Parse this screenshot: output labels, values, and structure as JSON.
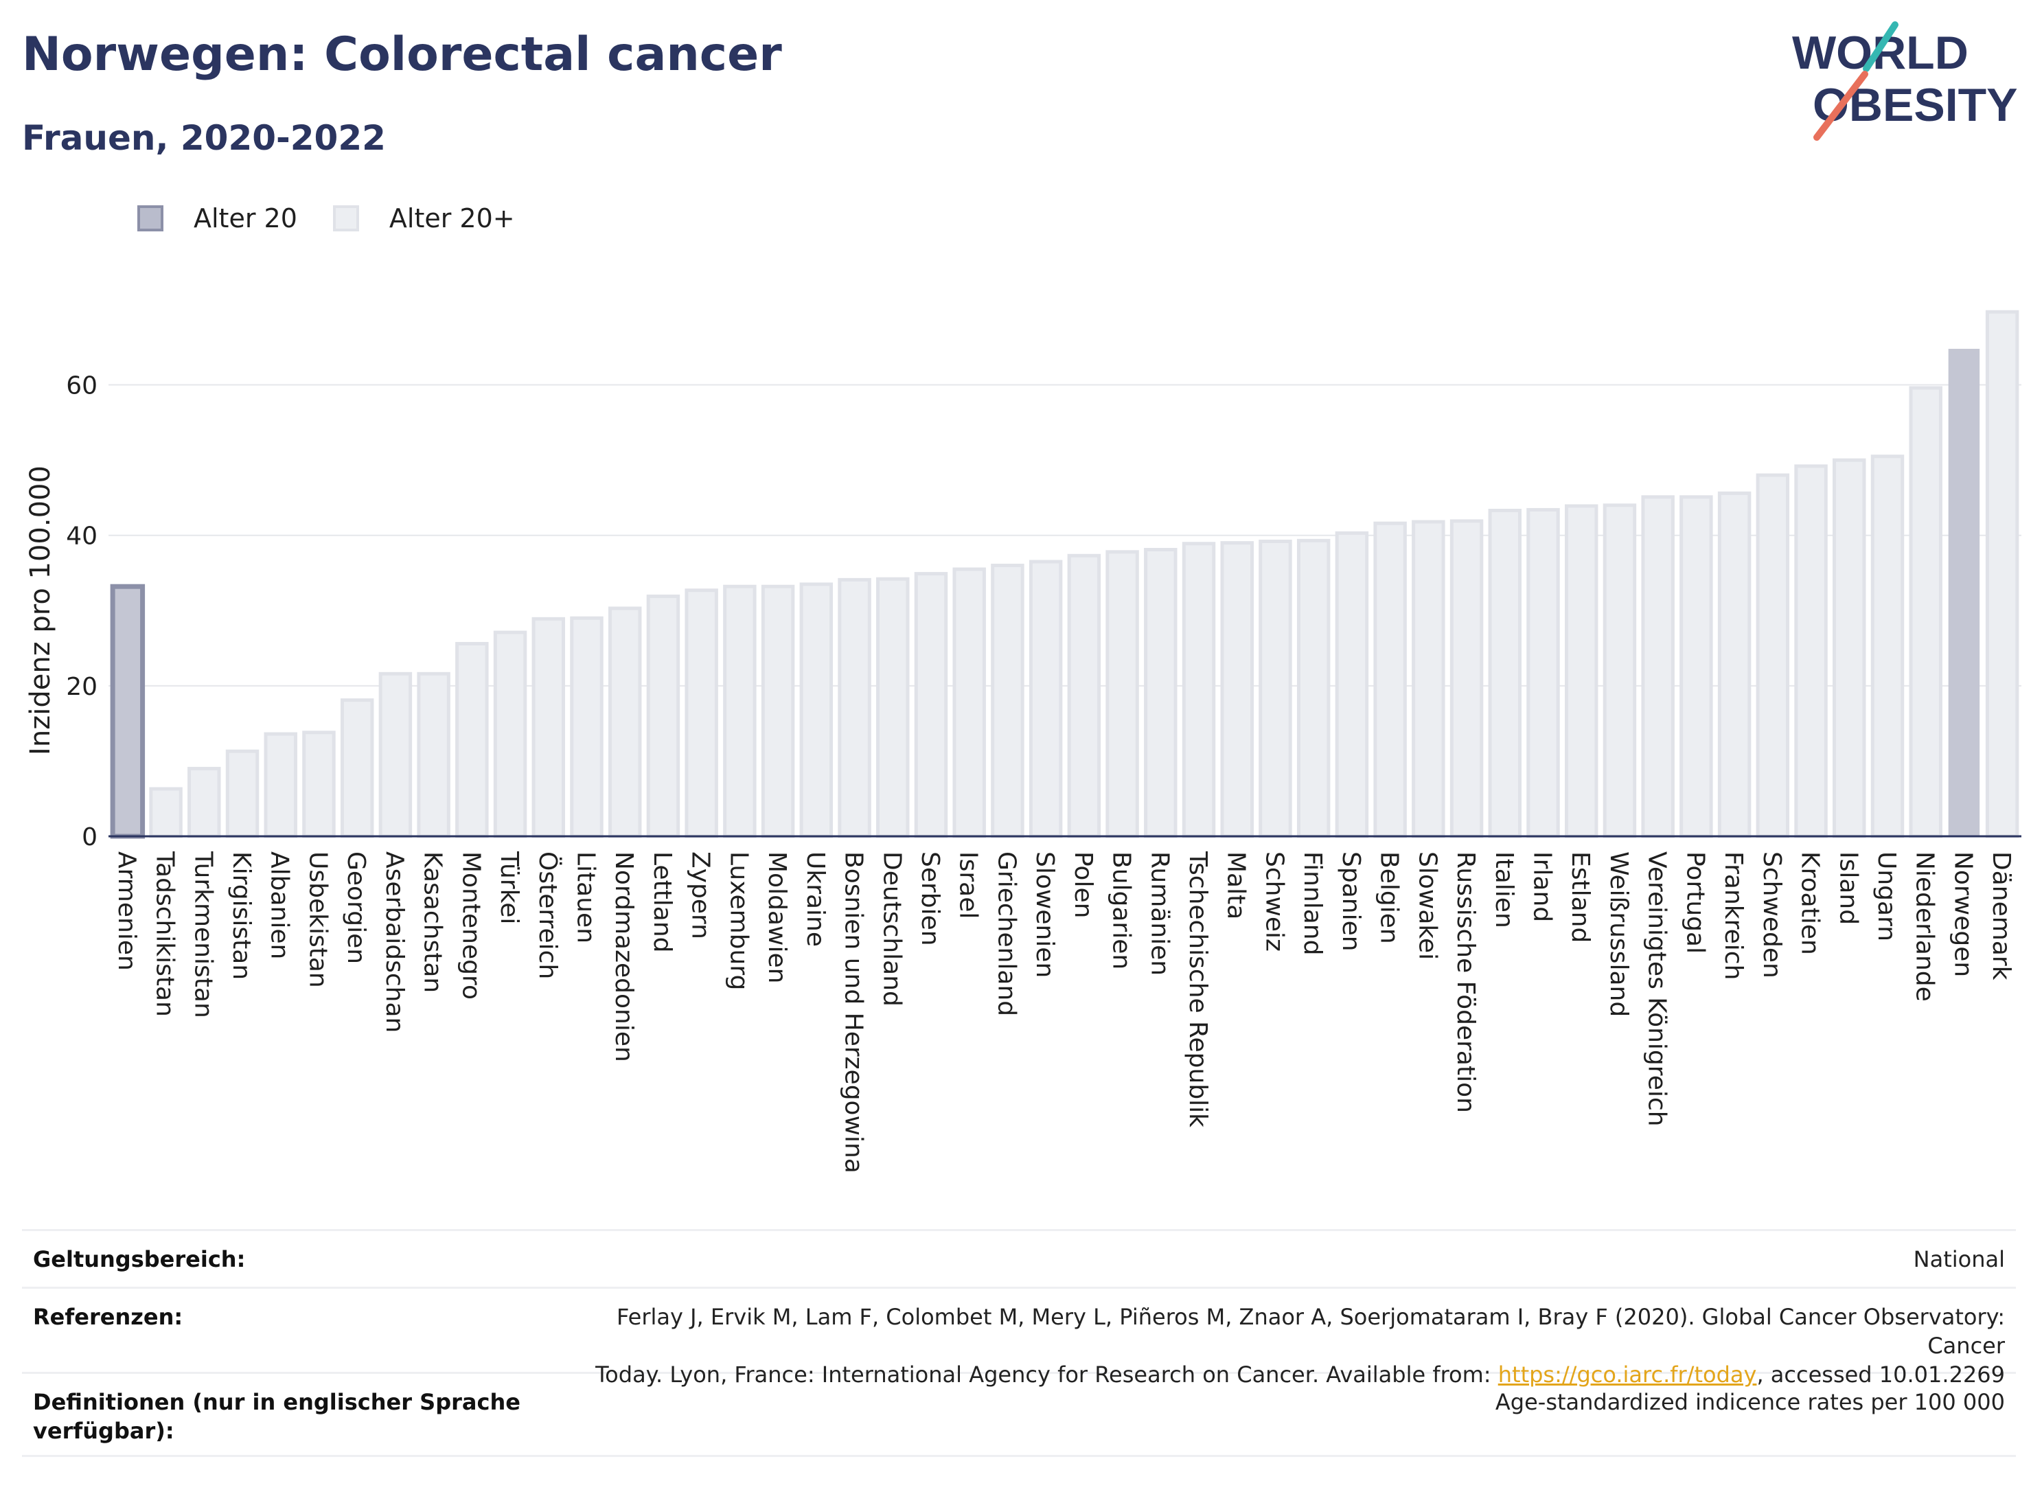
{
  "title": "Norwegen: Colorectal cancer",
  "subtitle": "Frauen, 2020-2022",
  "logo": {
    "line1": "WORLD",
    "line2": "OBESITY"
  },
  "legend": {
    "items": [
      {
        "label": "Alter 20"
      },
      {
        "label": "Alter 20+"
      }
    ]
  },
  "colors": {
    "title": "#2b3560",
    "highlight_fill": "#c4c6d3",
    "highlight_outline": "#8c90a8",
    "bar_fill": "#eceef2",
    "bar_outline": "#e0e2e8",
    "logo_teal": "#35b7b2",
    "logo_coral": "#e8705b",
    "link": "#e3a51b"
  },
  "chart_data": {
    "type": "bar",
    "title": "Norwegen: Colorectal cancer",
    "subtitle": "Frauen, 2020-2022",
    "xlabel": "",
    "ylabel": "Inzidenz pro 100.000",
    "ylim": [
      0,
      71
    ],
    "yticks": [
      0,
      20,
      40,
      60
    ],
    "grid": true,
    "legend_position": "top-left",
    "categories": [
      "Armenien",
      "Tadschikistan",
      "Turkmenistan",
      "Kirgisistan",
      "Albanien",
      "Usbekistan",
      "Georgien",
      "Aserbaidschan",
      "Kasachstan",
      "Montenegro",
      "Türkei",
      "Österreich",
      "Litauen",
      "Nordmazedonien",
      "Lettland",
      "Zypern",
      "Luxemburg",
      "Moldawien",
      "Ukraine",
      "Bosnien und Herzegowina",
      "Deutschland",
      "Serbien",
      "Israel",
      "Griechenland",
      "Slowenien",
      "Polen",
      "Bulgarien",
      "Rumänien",
      "Tschechische Republik",
      "Malta",
      "Schweiz",
      "Finnland",
      "Spanien",
      "Belgien",
      "Slowakei",
      "Russische Föderation",
      "Italien",
      "Irland",
      "Estland",
      "Weißrussland",
      "Vereinigtes Königreich",
      "Portugal",
      "Frankreich",
      "Schweden",
      "Kroatien",
      "Island",
      "Ungarn",
      "Niederlande",
      "Norwegen",
      "Dänemark"
    ],
    "values": [
      33.2,
      6.3,
      9.0,
      11.3,
      13.6,
      13.8,
      18.1,
      21.6,
      21.6,
      25.6,
      27.1,
      28.9,
      29.0,
      30.3,
      31.9,
      32.7,
      33.2,
      33.2,
      33.5,
      34.1,
      34.2,
      34.9,
      35.5,
      36.0,
      36.5,
      37.3,
      37.8,
      38.1,
      38.9,
      39.0,
      39.2,
      39.3,
      40.3,
      41.6,
      41.8,
      41.9,
      43.3,
      43.4,
      43.9,
      44.0,
      45.1,
      45.1,
      45.6,
      48.0,
      49.2,
      50.0,
      50.5,
      59.6,
      64.7,
      69.7
    ],
    "series_by_category": [
      "Alter 20",
      "Alter 20+",
      "Alter 20+",
      "Alter 20+",
      "Alter 20+",
      "Alter 20+",
      "Alter 20+",
      "Alter 20+",
      "Alter 20+",
      "Alter 20+",
      "Alter 20+",
      "Alter 20+",
      "Alter 20+",
      "Alter 20+",
      "Alter 20+",
      "Alter 20+",
      "Alter 20+",
      "Alter 20+",
      "Alter 20+",
      "Alter 20+",
      "Alter 20+",
      "Alter 20+",
      "Alter 20+",
      "Alter 20+",
      "Alter 20+",
      "Alter 20+",
      "Alter 20+",
      "Alter 20+",
      "Alter 20+",
      "Alter 20+",
      "Alter 20+",
      "Alter 20+",
      "Alter 20+",
      "Alter 20+",
      "Alter 20+",
      "Alter 20+",
      "Alter 20+",
      "Alter 20+",
      "Alter 20+",
      "Alter 20+",
      "Alter 20+",
      "Alter 20+",
      "Alter 20+",
      "Alter 20+",
      "Alter 20+",
      "Alter 20+",
      "Alter 20+",
      "Alter 20+",
      "Alter 20+",
      "Alter 20+"
    ],
    "highlight": "Norwegen"
  },
  "info": {
    "scope_label": "Geltungsbereich:",
    "scope_value": "National",
    "refs_label": "Referenzen:",
    "refs_text_line1": "Ferlay J, Ervik M, Lam F, Colombet M, Mery L, Piñeros M, Znaor A, Soerjomataram I, Bray F (2020). Global Cancer Observatory: Cancer",
    "refs_text_line2_pre": "Today. Lyon, France: International Agency for Research on Cancer. Available from: ",
    "refs_link": "https://gco.iarc.fr/today",
    "refs_text_line2_post": ", accessed 10.01.2269",
    "defs_label": "Definitionen (nur in englischer Sprache verfügbar):",
    "defs_value": "Age-standardized indicence rates per 100 000"
  }
}
